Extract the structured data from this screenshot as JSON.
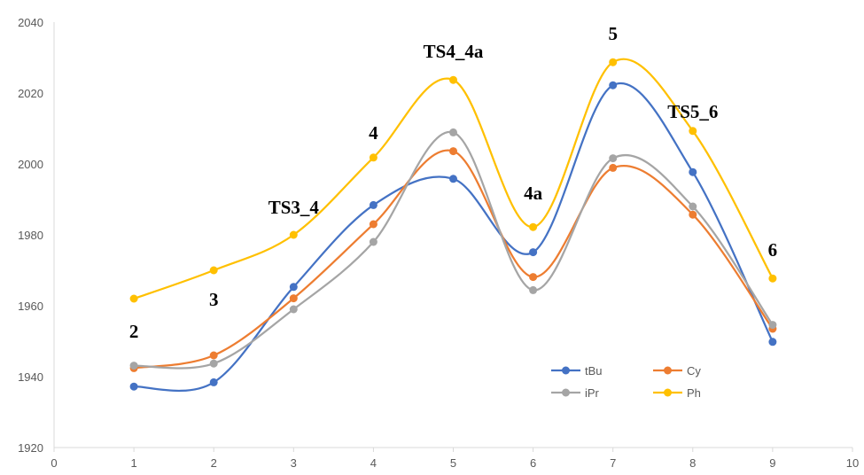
{
  "chart_data": {
    "type": "scatter",
    "title": "",
    "xlabel": "",
    "ylabel": "",
    "xlim": [
      0,
      10
    ],
    "ylim": [
      1920,
      2040
    ],
    "x_ticks": [
      "0",
      "1",
      "2",
      "3",
      "4",
      "5",
      "6",
      "7",
      "8",
      "9",
      "10"
    ],
    "y_ticks": [
      "1920",
      "1940",
      "1960",
      "1980",
      "2000",
      "2020",
      "2040"
    ],
    "grid": false,
    "smooth_lines": true,
    "legend_position": "bottom-right inside plot",
    "series": [
      {
        "name": "tBu",
        "color": "#4472C4",
        "x": [
          1,
          2,
          3,
          4,
          5,
          6,
          7,
          8,
          9
        ],
        "y": [
          1937.2,
          1938.4,
          1965.3,
          1988.4,
          1995.8,
          1975.1,
          2022.2,
          1997.7,
          1949.8
        ]
      },
      {
        "name": "Cy",
        "color": "#ED7D31",
        "x": [
          1,
          2,
          3,
          4,
          5,
          6,
          7,
          8,
          9
        ],
        "y": [
          1942.4,
          1946.0,
          1962.1,
          1983.0,
          2003.6,
          1968.1,
          1998.9,
          1985.7,
          1953.5
        ]
      },
      {
        "name": "iPr",
        "color": "#A5A5A5",
        "x": [
          1,
          2,
          3,
          4,
          5,
          6,
          7,
          8,
          9
        ],
        "y": [
          1943.1,
          1943.7,
          1959.0,
          1978.0,
          2008.9,
          1964.4,
          2001.6,
          1988.0,
          1954.6
        ]
      },
      {
        "name": "Ph",
        "color": "#FFC000",
        "x": [
          1,
          2,
          3,
          4,
          5,
          6,
          7,
          8,
          9
        ],
        "y": [
          1962.0,
          1970.0,
          1980.0,
          2001.8,
          2023.7,
          1982.2,
          2028.7,
          2009.3,
          1967.7
        ]
      }
    ],
    "annotations": [
      {
        "text": "2",
        "x": 1,
        "y": 1951
      },
      {
        "text": "3",
        "x": 2,
        "y": 1960
      },
      {
        "text": "TS3_4",
        "x": 3,
        "y": 1986
      },
      {
        "text": "4",
        "x": 4,
        "y": 2007
      },
      {
        "text": "TS4_4a",
        "x": 5,
        "y": 2030
      },
      {
        "text": "4a",
        "x": 6,
        "y": 1990
      },
      {
        "text": "5",
        "x": 7,
        "y": 2035
      },
      {
        "text": "TS5_6",
        "x": 8,
        "y": 2013
      },
      {
        "text": "6",
        "x": 9,
        "y": 1974
      }
    ]
  }
}
